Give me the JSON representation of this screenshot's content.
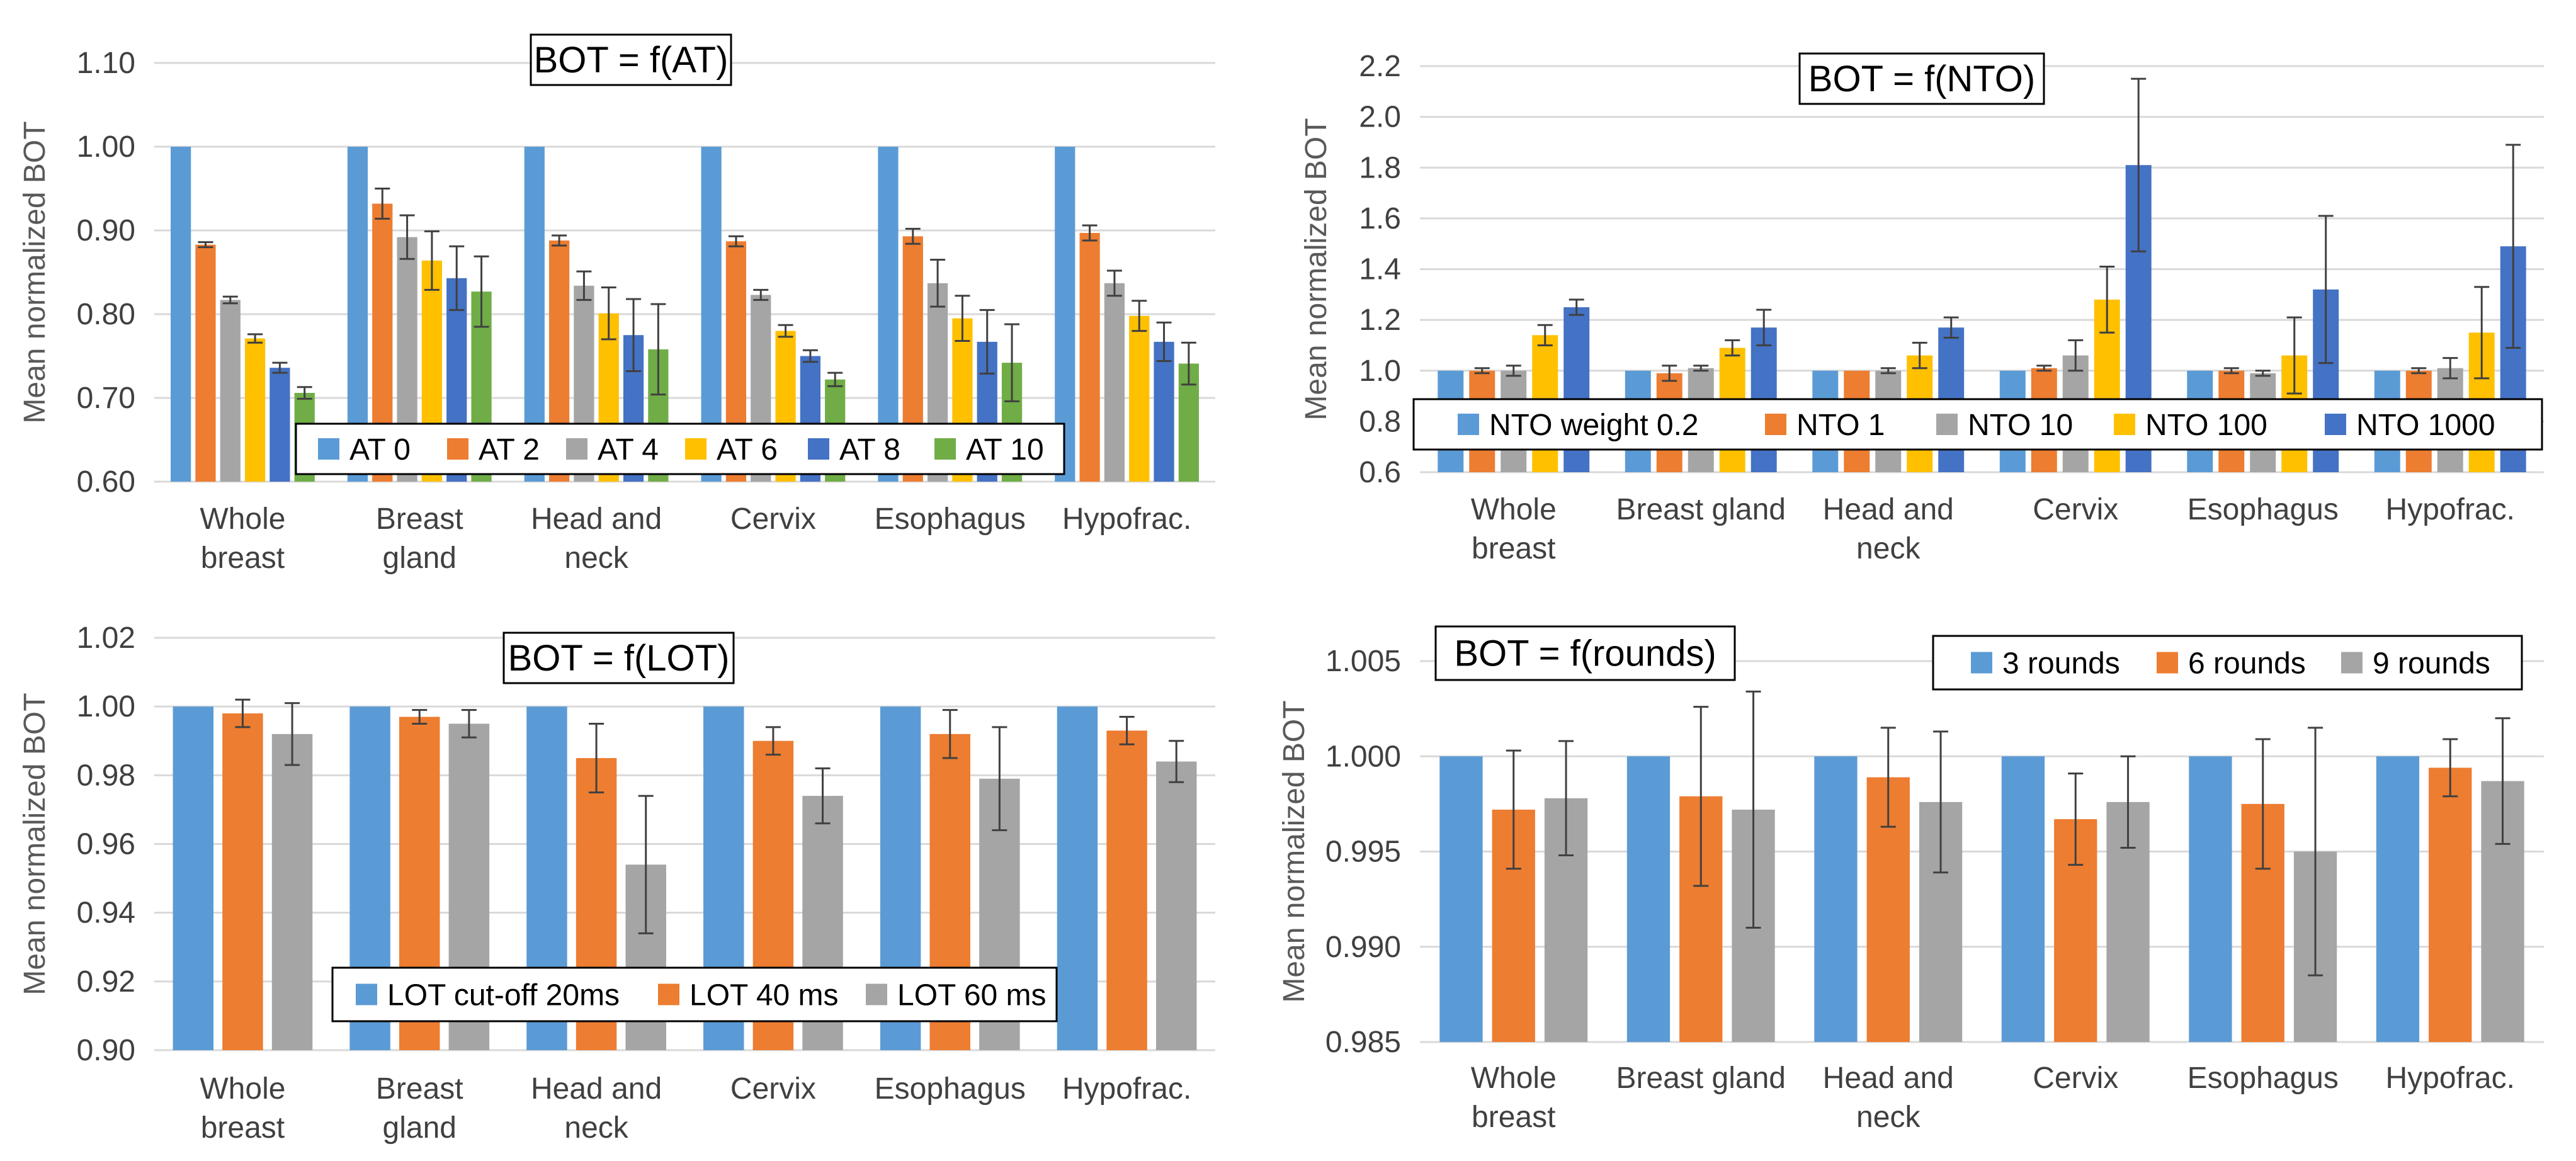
{
  "chart_data": [
    {
      "type": "bar",
      "title": "BOT = f(AT)",
      "xlabel": "",
      "ylabel": "Mean normalized BOT",
      "ylim": [
        0.6,
        1.1
      ],
      "yticks": [
        "0.60",
        "0.70",
        "0.80",
        "0.90",
        "1.00",
        "1.10"
      ],
      "grid": true,
      "legend_position": "bottom-inside",
      "categories": [
        [
          "Whole",
          "breast"
        ],
        [
          "Breast",
          "gland"
        ],
        [
          "Head and",
          "neck"
        ],
        [
          "Cervix"
        ],
        [
          "Esophagus"
        ],
        [
          "Hypofrac."
        ]
      ],
      "series": [
        {
          "name": "AT 0",
          "color": "#5B9BD5",
          "values": [
            1.0,
            1.0,
            1.0,
            1.0,
            1.0,
            1.0
          ],
          "errors": [
            0,
            0,
            0,
            0,
            0,
            0
          ]
        },
        {
          "name": "AT 2",
          "color": "#ED7D31",
          "values": [
            0.883,
            0.932,
            0.888,
            0.887,
            0.893,
            0.897
          ],
          "errors": [
            0.003,
            0.018,
            0.006,
            0.006,
            0.009,
            0.009
          ]
        },
        {
          "name": "AT 4",
          "color": "#A5A5A5",
          "values": [
            0.817,
            0.892,
            0.834,
            0.823,
            0.837,
            0.837
          ],
          "errors": [
            0.004,
            0.026,
            0.017,
            0.006,
            0.028,
            0.015
          ]
        },
        {
          "name": "AT 6",
          "color": "#FFC000",
          "values": [
            0.771,
            0.864,
            0.801,
            0.78,
            0.795,
            0.798
          ],
          "errors": [
            0.005,
            0.035,
            0.031,
            0.007,
            0.027,
            0.018
          ]
        },
        {
          "name": "AT 8",
          "color": "#4472C4",
          "values": [
            0.736,
            0.843,
            0.775,
            0.75,
            0.767,
            0.767
          ],
          "errors": [
            0.006,
            0.038,
            0.043,
            0.007,
            0.038,
            0.023
          ]
        },
        {
          "name": "AT 10",
          "color": "#70AD47",
          "values": [
            0.706,
            0.827,
            0.758,
            0.722,
            0.742,
            0.741
          ],
          "errors": [
            0.007,
            0.042,
            0.054,
            0.008,
            0.046,
            0.025
          ]
        }
      ]
    },
    {
      "type": "bar",
      "title": "BOT = f(NTO)",
      "xlabel": "",
      "ylabel": "Mean normalized BOT",
      "ylim": [
        0.6,
        2.2
      ],
      "yticks": [
        "0.6",
        "0.8",
        "1.0",
        "1.2",
        "1.4",
        "1.6",
        "1.8",
        "2.0",
        "2.2"
      ],
      "grid": true,
      "legend_position": "bottom-inside",
      "categories": [
        [
          "Whole",
          "breast"
        ],
        [
          "Breast gland"
        ],
        [
          "Head and",
          "neck"
        ],
        [
          "Cervix"
        ],
        [
          "Esophagus"
        ],
        [
          "Hypofrac."
        ]
      ],
      "series": [
        {
          "name": "NTO weight 0.2",
          "color": "#5B9BD5",
          "values": [
            1.0,
            1.0,
            1.0,
            1.0,
            1.0,
            1.0
          ],
          "errors": [
            0,
            0,
            0,
            0,
            0,
            0
          ]
        },
        {
          "name": "NTO 1",
          "color": "#ED7D31",
          "values": [
            1.0,
            0.99,
            1.0,
            1.01,
            1.0,
            1.0
          ],
          "errors": [
            0.01,
            0.03,
            0.0,
            0.01,
            0.01,
            0.01
          ]
        },
        {
          "name": "NTO 10",
          "color": "#A5A5A5",
          "values": [
            1.0,
            1.01,
            1.0,
            1.06,
            0.99,
            1.01
          ],
          "errors": [
            0.02,
            0.01,
            0.01,
            0.06,
            0.01,
            0.04
          ]
        },
        {
          "name": "NTO 100",
          "color": "#FFC000",
          "values": [
            1.14,
            1.09,
            1.06,
            1.28,
            1.06,
            1.15
          ],
          "errors": [
            0.04,
            0.03,
            0.05,
            0.13,
            0.15,
            0.18
          ]
        },
        {
          "name": "NTO 1000",
          "color": "#4472C4",
          "values": [
            1.25,
            1.17,
            1.17,
            1.81,
            1.32,
            1.49
          ],
          "errors": [
            0.03,
            0.07,
            0.04,
            0.34,
            0.29,
            0.4
          ]
        }
      ]
    },
    {
      "type": "bar",
      "title": "BOT = f(LOT)",
      "xlabel": "",
      "ylabel": "Mean normalized BOT",
      "ylim": [
        0.9,
        1.02
      ],
      "yticks": [
        "0.90",
        "0.92",
        "0.94",
        "0.96",
        "0.98",
        "1.00",
        "1.02"
      ],
      "grid": true,
      "legend_position": "bottom-inside",
      "categories": [
        [
          "Whole",
          "breast"
        ],
        [
          "Breast",
          "gland"
        ],
        [
          "Head and",
          "neck"
        ],
        [
          "Cervix"
        ],
        [
          "Esophagus"
        ],
        [
          "Hypofrac."
        ]
      ],
      "series": [
        {
          "name": "LOT cut-off 20ms",
          "color": "#5B9BD5",
          "values": [
            1.0,
            1.0,
            1.0,
            1.0,
            1.0,
            1.0
          ],
          "errors": [
            0,
            0,
            0,
            0,
            0,
            0
          ]
        },
        {
          "name": "LOT 40 ms",
          "color": "#ED7D31",
          "values": [
            0.998,
            0.997,
            0.985,
            0.99,
            0.992,
            0.993
          ],
          "errors": [
            0.004,
            0.002,
            0.01,
            0.004,
            0.007,
            0.004
          ]
        },
        {
          "name": "LOT 60 ms",
          "color": "#A5A5A5",
          "values": [
            0.992,
            0.995,
            0.954,
            0.974,
            0.979,
            0.984
          ],
          "errors": [
            0.009,
            0.004,
            0.02,
            0.008,
            0.015,
            0.006
          ]
        }
      ]
    },
    {
      "type": "bar",
      "title": "BOT = f(rounds)",
      "xlabel": "",
      "ylabel": "Mean normalized BOT",
      "ylim": [
        0.985,
        1.005
      ],
      "yticks": [
        "0.985",
        "0.990",
        "0.995",
        "1.000",
        "1.005"
      ],
      "grid": true,
      "legend_position": "top-right-inside",
      "categories": [
        [
          "Whole",
          "breast"
        ],
        [
          "Breast gland"
        ],
        [
          "Head and",
          "neck"
        ],
        [
          "Cervix"
        ],
        [
          "Esophagus"
        ],
        [
          "Hypofrac."
        ]
      ],
      "series": [
        {
          "name": "3 rounds",
          "color": "#5B9BD5",
          "values": [
            1.0,
            1.0,
            1.0,
            1.0,
            1.0,
            1.0
          ],
          "errors": [
            0,
            0,
            0,
            0,
            0,
            0
          ]
        },
        {
          "name": "6 rounds",
          "color": "#ED7D31",
          "values": [
            0.9972,
            0.9979,
            0.9989,
            0.9967,
            0.9975,
            0.9994
          ],
          "errors": [
            0.0031,
            0.0047,
            0.0026,
            0.0024,
            0.0034,
            0.0015
          ]
        },
        {
          "name": "9 rounds",
          "color": "#A5A5A5",
          "values": [
            0.9978,
            0.9972,
            0.9976,
            0.9976,
            0.995,
            0.9987
          ],
          "errors": [
            0.003,
            0.0062,
            0.0037,
            0.0024,
            0.0065,
            0.0033
          ]
        }
      ]
    }
  ]
}
